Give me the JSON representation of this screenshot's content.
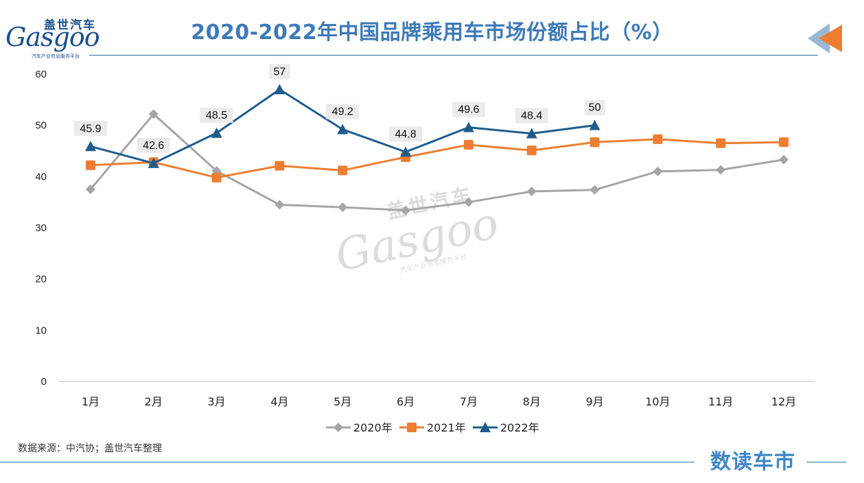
{
  "header": {
    "logo_cn": "盖世汽车",
    "logo_en": "Gasgoo",
    "logo_sub": "汽车产业信息服务平台",
    "title": "2020-2022年中国品牌乘用车市场份额占比（%）"
  },
  "footer": {
    "source": "数据来源：中汽协；盖世汽车整理",
    "brand": "数读车市"
  },
  "colors": {
    "accent": "#3e7ab8",
    "series_2020": "#a5a5a5",
    "series_2021": "#ed7d31",
    "series_2022": "#1f5c8e"
  },
  "chart_data": {
    "type": "line",
    "title": "2020-2022年中国品牌乘用车市场份额占比（%）",
    "categories": [
      "1月",
      "2月",
      "3月",
      "4月",
      "5月",
      "6月",
      "7月",
      "8月",
      "9月",
      "10月",
      "11月",
      "12月"
    ],
    "ylim": [
      0,
      60
    ],
    "yticks": [
      0,
      10,
      20,
      30,
      40,
      50,
      60
    ],
    "grid": false,
    "legend": "bottom",
    "series": [
      {
        "name": "2020年",
        "marker": "diamond",
        "color": "#a5a5a5",
        "values": [
          37.5,
          52.2,
          41.1,
          34.5,
          34.0,
          33.4,
          35.0,
          37.1,
          37.4,
          41.0,
          41.3,
          43.3
        ],
        "labels": false
      },
      {
        "name": "2021年",
        "marker": "square",
        "color": "#ed7d31",
        "values": [
          42.2,
          42.8,
          39.8,
          42.1,
          41.2,
          43.8,
          46.2,
          45.1,
          46.7,
          47.3,
          46.5,
          46.7
        ],
        "labels": false
      },
      {
        "name": "2022年",
        "marker": "triangle",
        "color": "#1f5c8e",
        "values": [
          45.9,
          42.6,
          48.5,
          57,
          49.2,
          44.8,
          49.6,
          48.4,
          50,
          null,
          null,
          null
        ],
        "labels": true
      }
    ]
  }
}
